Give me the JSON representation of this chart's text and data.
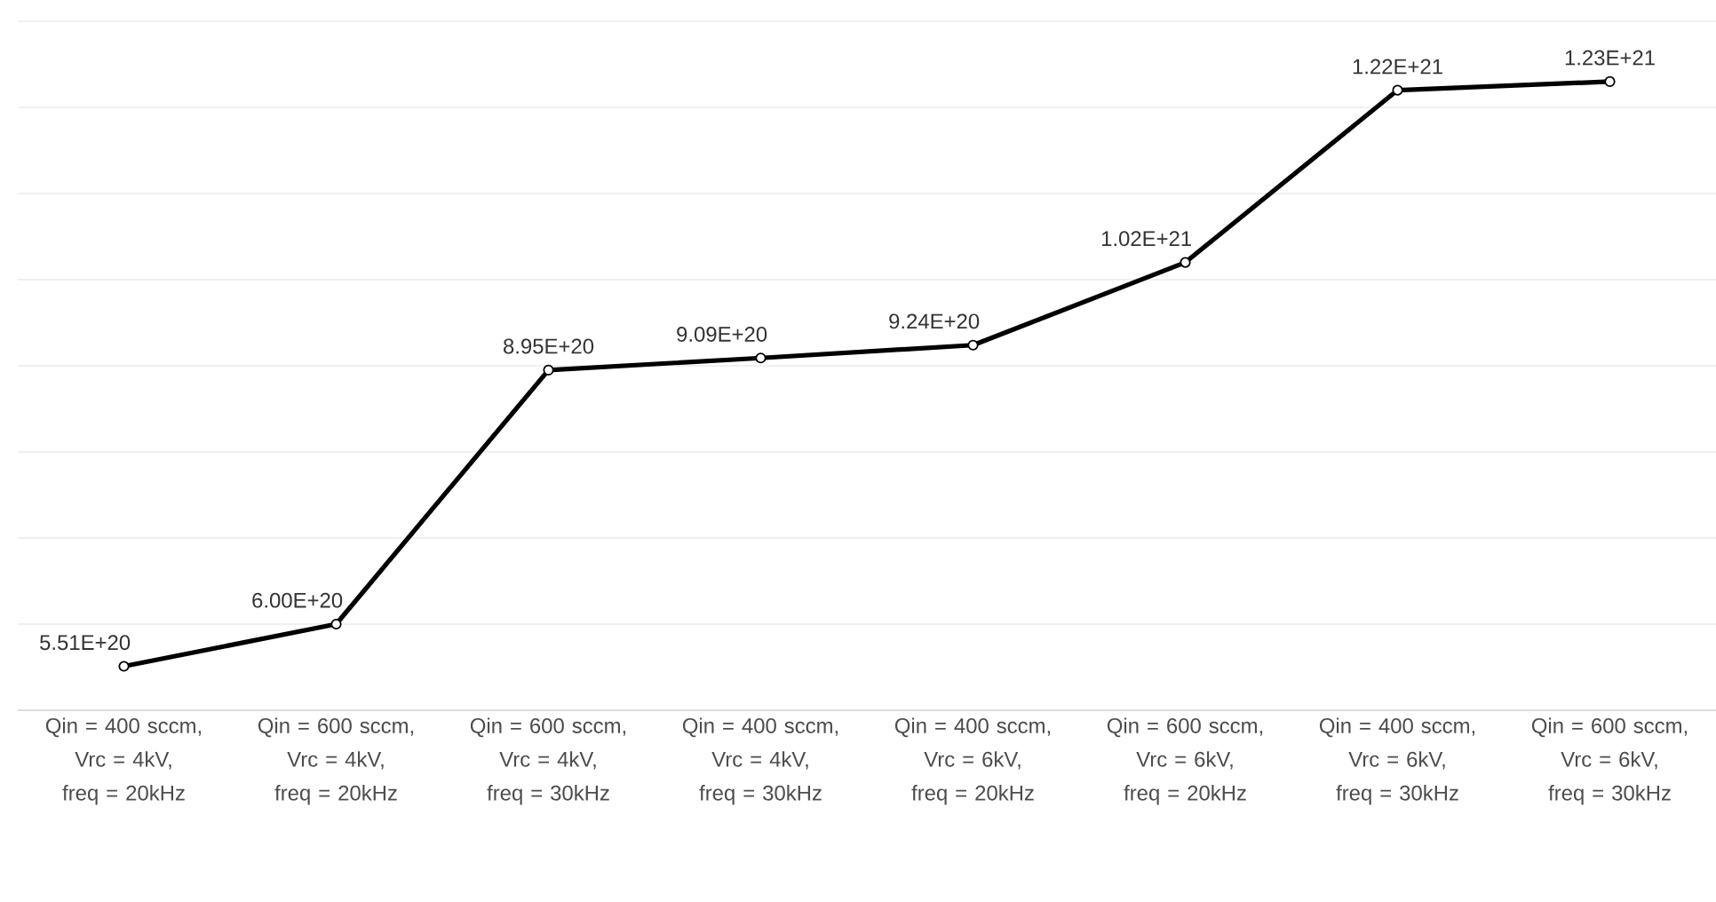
{
  "chart_data": {
    "type": "line",
    "categories": [
      "Qin = 400 sccm, Vrc = 4kV, freq = 20kHz",
      "Qin = 600 sccm, Vrc = 4kV, freq = 20kHz",
      "Qin = 600 sccm, Vrc = 4kV, freq = 30kHz",
      "Qin = 400 sccm, Vrc = 4kV, freq = 30kHz",
      "Qin = 400 sccm, Vrc = 6kV, freq = 20kHz",
      "Qin = 600 sccm, Vrc = 6kV, freq = 20kHz",
      "Qin = 400 sccm, Vrc = 6kV, freq = 30kHz",
      "Qin = 600 sccm, Vrc = 6kV, freq = 30kHz"
    ],
    "series": [
      {
        "color": "#000000",
        "values": [
          5.51e+20,
          6e+20,
          8.95e+20,
          9.09e+20,
          9.24e+20,
          1.02e+21,
          1.22e+21,
          1.23e+21
        ],
        "value_labels": [
          "5.51E+20",
          "6.00E+20",
          "8.95E+20",
          "9.09E+20",
          "9.24E+20",
          "1.02E+21",
          "1.22E+21",
          "1.23E+21"
        ]
      }
    ],
    "ylim": [
      5e+20,
      1.3e+21
    ],
    "yticks": [
      5e+20,
      6e+20,
      7e+20,
      8e+20,
      9e+20,
      1e+21,
      1.1e+21,
      1.2e+21,
      1.3e+21
    ],
    "tick_labels": "x",
    "grid": "y",
    "marker": "circle",
    "line_style": "solid"
  }
}
